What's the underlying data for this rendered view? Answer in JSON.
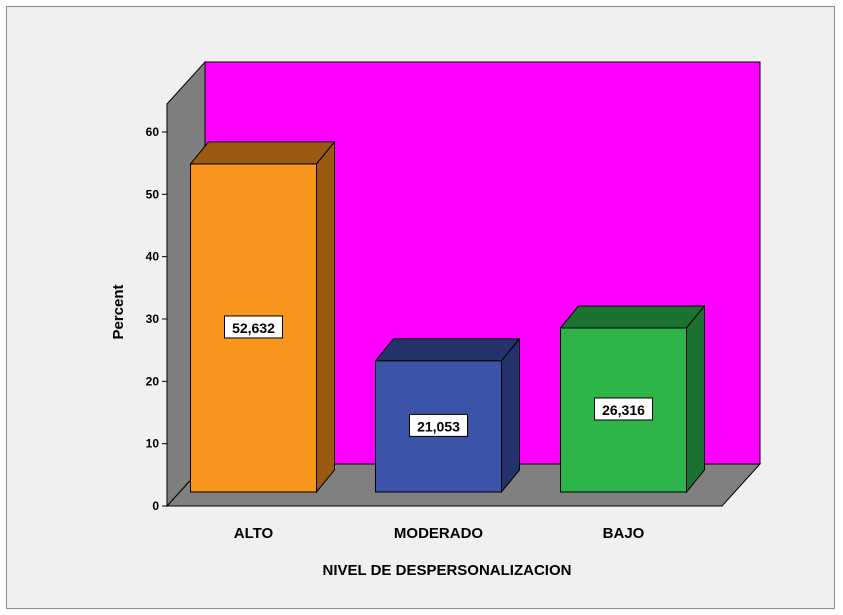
{
  "chart_data": {
    "type": "bar",
    "categories": [
      "ALTO",
      "MODERADO",
      "BAJO"
    ],
    "values": [
      52.632,
      21.053,
      26.316
    ],
    "value_labels": [
      "52,632",
      "21,053",
      "26,316"
    ],
    "xlabel": "NIVEL DE DESPERSONALIZACION",
    "ylabel": "Percent",
    "ylim": [
      0,
      60
    ],
    "yticks": [
      "0",
      "10",
      "20",
      "30",
      "40",
      "50",
      "60"
    ],
    "three_d": true,
    "grid": false,
    "legend": "none",
    "colors": {
      "back_wall": "#ff00ff",
      "side_wall": "#7f7f7f",
      "floor": "#808080",
      "bars": [
        "#f9961d",
        "#3c54a8",
        "#2db54a"
      ],
      "bar_tops": [
        "#9b5a12",
        "#23326b",
        "#1c7331"
      ],
      "bar_sides": [
        "#9b5a12",
        "#23326b",
        "#1c7331"
      ],
      "frame_background": "#f0f0f0"
    }
  }
}
